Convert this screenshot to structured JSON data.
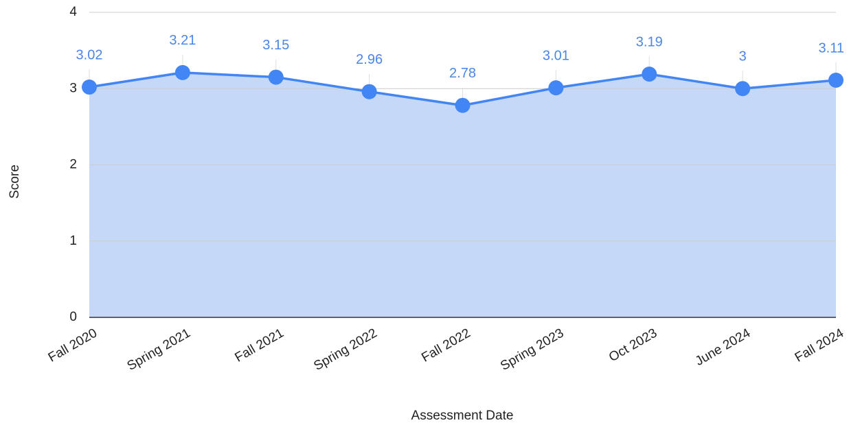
{
  "chart_data": {
    "type": "area-line",
    "x_label": "Assessment Date",
    "y_label": "Score",
    "categories": [
      "Fall 2020",
      "Spring 2021",
      "Fall 2021",
      "Spring 2022",
      "Fall 2022",
      "Spring 2023",
      "Oct 2023",
      "June 2024",
      "Fall 2024"
    ],
    "series": [
      {
        "name": "Score",
        "color": "#4285f4",
        "area_color": "#c6d8f7",
        "values": [
          3.02,
          3.21,
          3.15,
          2.96,
          2.78,
          3.01,
          3.19,
          3,
          3.11
        ]
      }
    ],
    "ylim": [
      0,
      4
    ],
    "yticks": [
      0,
      1,
      2,
      3,
      4
    ],
    "grid": true
  }
}
